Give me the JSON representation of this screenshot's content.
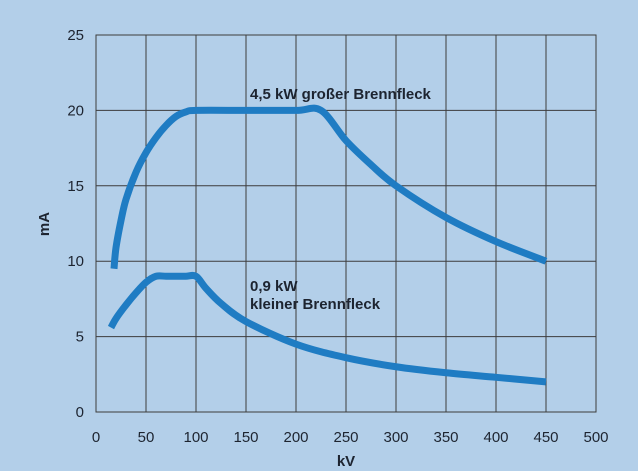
{
  "chart_data": {
    "type": "line",
    "title": "",
    "xlabel": "kV",
    "ylabel": "mA",
    "xlim": [
      0,
      500
    ],
    "ylim": [
      0,
      25
    ],
    "grid": true,
    "x_ticks": [
      "0",
      "50",
      "100",
      "150",
      "200",
      "250",
      "300",
      "350",
      "400",
      "450",
      "500"
    ],
    "y_ticks": [
      "0",
      "5",
      "10",
      "15",
      "20",
      "25"
    ],
    "series": [
      {
        "name": "4,5 kW großer Brennfleck",
        "color": "#1f7cc3",
        "x": [
          18,
          20,
          25,
          30,
          40,
          50,
          60,
          70,
          80,
          90,
          100,
          150,
          200,
          225,
          250,
          275,
          300,
          350,
          400,
          450
        ],
        "y": [
          9.5,
          10.9,
          12.7,
          14.1,
          15.9,
          17.2,
          18.2,
          19.0,
          19.6,
          19.9,
          20.0,
          20.0,
          20.0,
          20.0,
          18.0,
          16.4,
          15.0,
          12.9,
          11.3,
          10.0
        ]
      },
      {
        "name": "0,9 kW kleiner Brennfleck",
        "color": "#1f7cc3",
        "x": [
          15,
          20,
          30,
          40,
          50,
          60,
          70,
          80,
          90,
          100,
          110,
          125,
          150,
          200,
          250,
          300,
          350,
          400,
          450
        ],
        "y": [
          5.6,
          6.2,
          7.1,
          7.9,
          8.6,
          9.0,
          9.0,
          9.0,
          9.0,
          9.0,
          8.2,
          7.2,
          6.0,
          4.5,
          3.6,
          3.0,
          2.6,
          2.3,
          2.0
        ]
      }
    ],
    "annotations": [
      {
        "text": "4,5 kW großer Brennfleck"
      },
      {
        "text": "0,9 kW"
      },
      {
        "text": "kleiner Brennfleck"
      }
    ]
  }
}
